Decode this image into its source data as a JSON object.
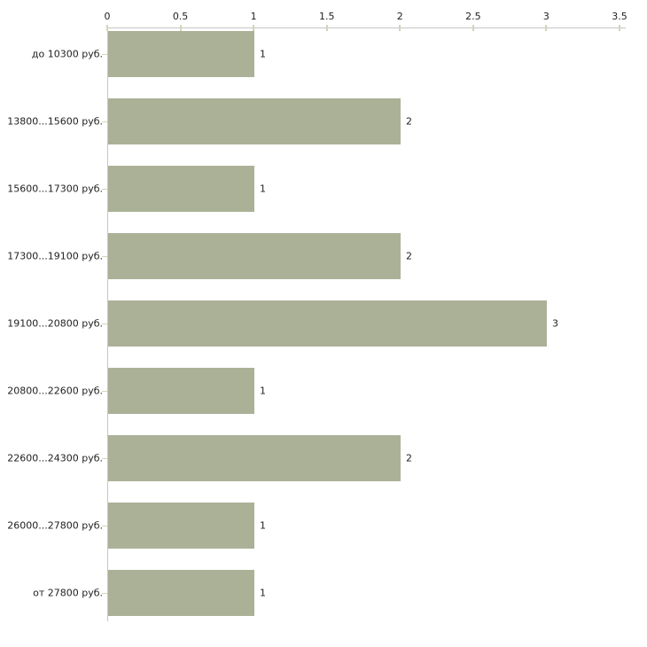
{
  "chart_data": {
    "type": "bar",
    "orientation": "horizontal",
    "title": "",
    "xlabel": "",
    "ylabel": "",
    "categories": [
      "до 10300 руб.",
      "13800...15600 руб.",
      "15600...17300 руб.",
      "17300...19100 руб.",
      "19100...20800 руб.",
      "20800...22600 руб.",
      "22600...24300 руб.",
      "26000...27800 руб.",
      "от 27800 руб."
    ],
    "values": [
      1,
      2,
      1,
      2,
      3,
      1,
      2,
      1,
      1
    ],
    "value_labels": [
      "1",
      "2",
      "1",
      "2",
      "3",
      "1",
      "2",
      "1",
      "1"
    ],
    "xlim": [
      0,
      3.5
    ],
    "x_ticks": [
      0,
      0.5,
      1,
      1.5,
      2,
      2.5,
      3,
      3.5
    ],
    "x_tick_labels": [
      "0",
      "0.5",
      "1",
      "1.5",
      "2",
      "2.5",
      "3",
      "3.5"
    ],
    "x_axis_position": "top",
    "grid": false,
    "legend": null,
    "colors": {
      "bar_fill": "#abb197",
      "axis_line": "#c6c6c6",
      "tick_mark": "#d3d5b8",
      "text": "#1f1f1f",
      "background": "#ffffff"
    }
  }
}
